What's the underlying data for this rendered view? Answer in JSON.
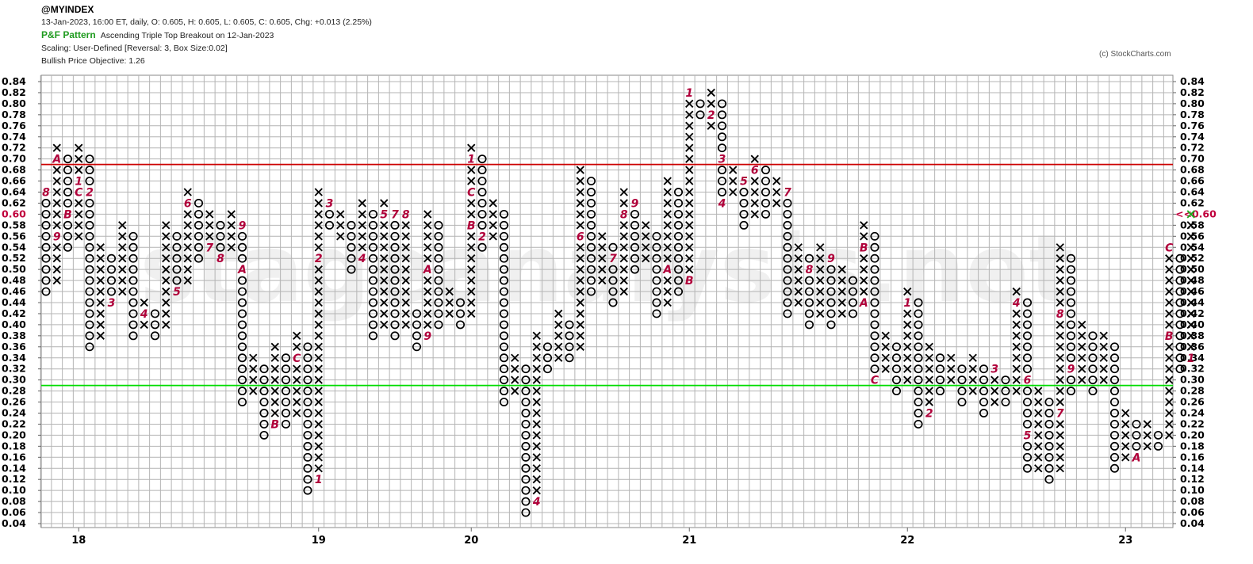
{
  "header": {
    "symbol": "@MYINDEX",
    "summary": "13-Jan-2023, 16:00 ET, daily, O: 0.605, H: 0.605, L: 0.605, C: 0.605, Chg: +0.013 (2.25%)",
    "pattern_label": "P&F Pattern",
    "pattern_text": "Ascending Triple Top Breakout on 12-Jan-2023",
    "scaling": "Scaling: User-Defined [Reversal: 3, Box Size:0.02]",
    "objective": "Bullish Price Objective: 1.26"
  },
  "copyright": "(c) StockCharts.com",
  "watermark": "stageanalysis.net",
  "chart_data": {
    "type": "point-and-figure",
    "box_size": 0.02,
    "reversal": 3,
    "y_ticks": [
      "0.84",
      "0.82",
      "0.80",
      "0.78",
      "0.76",
      "0.74",
      "0.72",
      "0.70",
      "0.68",
      "0.66",
      "0.64",
      "0.62",
      "0.60",
      "0.58",
      "0.56",
      "0.54",
      "0.52",
      "0.50",
      "0.48",
      "0.46",
      "0.44",
      "0.42",
      "0.40",
      "0.38",
      "0.36",
      "0.34",
      "0.32",
      "0.30",
      "0.28",
      "0.26",
      "0.24",
      "0.22",
      "0.20",
      "0.18",
      "0.16",
      "0.14",
      "0.12",
      "0.10",
      "0.08",
      "0.06",
      "0.04"
    ],
    "ylim": [
      0.04,
      0.84
    ],
    "current_price_label": "0.60",
    "current_price_marker": "<<0.60",
    "x_ticks": [
      {
        "label": "18",
        "col": 3
      },
      {
        "label": "19",
        "col": 25
      },
      {
        "label": "20",
        "col": 39
      },
      {
        "label": "21",
        "col": 59
      },
      {
        "label": "22",
        "col": 79
      },
      {
        "label": "23",
        "col": 99
      }
    ],
    "resistance_line": {
      "value": 0.69,
      "color": "#cc0000"
    },
    "support_line": {
      "value": 0.29,
      "color": "#00dd00"
    },
    "columns": [
      {
        "col": 0,
        "dir": "O",
        "top": 0.64,
        "bottom": 0.46,
        "marks": {
          "0.64": "8"
        }
      },
      {
        "col": 1,
        "dir": "X",
        "top": 0.72,
        "bottom": 0.48,
        "marks": {
          "0.70": "A",
          "0.56": "9"
        }
      },
      {
        "col": 2,
        "dir": "O",
        "top": 0.7,
        "bottom": 0.54,
        "marks": {
          "0.60": "B"
        }
      },
      {
        "col": 3,
        "dir": "X",
        "top": 0.72,
        "bottom": 0.56,
        "marks": {
          "0.66": "1",
          "0.64": "C"
        }
      },
      {
        "col": 4,
        "dir": "O",
        "top": 0.7,
        "bottom": 0.36,
        "marks": {
          "0.64": "2"
        }
      },
      {
        "col": 5,
        "dir": "X",
        "top": 0.54,
        "bottom": 0.38
      },
      {
        "col": 6,
        "dir": "O",
        "top": 0.52,
        "bottom": 0.44,
        "marks": {
          "0.44": "3"
        }
      },
      {
        "col": 7,
        "dir": "X",
        "top": 0.58,
        "bottom": 0.46
      },
      {
        "col": 8,
        "dir": "O",
        "top": 0.56,
        "bottom": 0.38
      },
      {
        "col": 9,
        "dir": "X",
        "top": 0.44,
        "bottom": 0.4,
        "marks": {
          "0.42": "4"
        }
      },
      {
        "col": 10,
        "dir": "O",
        "top": 0.42,
        "bottom": 0.38
      },
      {
        "col": 11,
        "dir": "X",
        "top": 0.58,
        "bottom": 0.4
      },
      {
        "col": 12,
        "dir": "O",
        "top": 0.56,
        "bottom": 0.46,
        "marks": {
          "0.46": "5"
        }
      },
      {
        "col": 13,
        "dir": "X",
        "top": 0.64,
        "bottom": 0.48,
        "marks": {
          "0.62": "6"
        }
      },
      {
        "col": 14,
        "dir": "O",
        "top": 0.62,
        "bottom": 0.52
      },
      {
        "col": 15,
        "dir": "X",
        "top": 0.6,
        "bottom": 0.54,
        "marks": {
          "0.54": "7"
        }
      },
      {
        "col": 16,
        "dir": "O",
        "top": 0.58,
        "bottom": 0.52,
        "marks": {
          "0.52": "8"
        }
      },
      {
        "col": 17,
        "dir": "X",
        "top": 0.6,
        "bottom": 0.54
      },
      {
        "col": 18,
        "dir": "O",
        "top": 0.58,
        "bottom": 0.26,
        "marks": {
          "0.58": "9",
          "0.50": "A"
        }
      },
      {
        "col": 19,
        "dir": "X",
        "top": 0.34,
        "bottom": 0.28
      },
      {
        "col": 20,
        "dir": "O",
        "top": 0.32,
        "bottom": 0.2
      },
      {
        "col": 21,
        "dir": "X",
        "top": 0.36,
        "bottom": 0.22,
        "marks": {
          "0.22": "B"
        }
      },
      {
        "col": 22,
        "dir": "O",
        "top": 0.34,
        "bottom": 0.22
      },
      {
        "col": 23,
        "dir": "X",
        "top": 0.38,
        "bottom": 0.24,
        "marks": {
          "0.34": "C"
        }
      },
      {
        "col": 24,
        "dir": "O",
        "top": 0.36,
        "bottom": 0.1
      },
      {
        "col": 25,
        "dir": "X",
        "top": 0.64,
        "bottom": 0.12,
        "marks": {
          "0.52": "2",
          "0.12": "1"
        }
      },
      {
        "col": 26,
        "dir": "O",
        "top": 0.62,
        "bottom": 0.58,
        "marks": {
          "0.62": "3"
        }
      },
      {
        "col": 27,
        "dir": "X",
        "top": 0.6,
        "bottom": 0.56
      },
      {
        "col": 28,
        "dir": "O",
        "top": 0.58,
        "bottom": 0.5
      },
      {
        "col": 29,
        "dir": "X",
        "top": 0.62,
        "bottom": 0.52,
        "marks": {
          "0.52": "4"
        }
      },
      {
        "col": 30,
        "dir": "O",
        "top": 0.6,
        "bottom": 0.38
      },
      {
        "col": 31,
        "dir": "X",
        "top": 0.62,
        "bottom": 0.4,
        "marks": {
          "0.60": "5",
          "0.38": "6"
        }
      },
      {
        "col": 32,
        "dir": "O",
        "top": 0.6,
        "bottom": 0.38,
        "marks": {
          "0.60": "7"
        }
      },
      {
        "col": 33,
        "dir": "X",
        "top": 0.6,
        "bottom": 0.4,
        "marks": {
          "0.60": "8"
        }
      },
      {
        "col": 34,
        "dir": "O",
        "top": 0.42,
        "bottom": 0.36
      },
      {
        "col": 35,
        "dir": "X",
        "top": 0.6,
        "bottom": 0.38,
        "marks": {
          "0.50": "A",
          "0.38": "9"
        }
      },
      {
        "col": 36,
        "dir": "O",
        "top": 0.58,
        "bottom": 0.4
      },
      {
        "col": 37,
        "dir": "X",
        "top": 0.46,
        "bottom": 0.42
      },
      {
        "col": 38,
        "dir": "O",
        "top": 0.44,
        "bottom": 0.4
      },
      {
        "col": 39,
        "dir": "X",
        "top": 0.72,
        "bottom": 0.42,
        "marks": {
          "0.70": "1",
          "0.64": "C",
          "0.58": "B"
        }
      },
      {
        "col": 40,
        "dir": "O",
        "top": 0.7,
        "bottom": 0.54,
        "marks": {
          "0.56": "2"
        }
      },
      {
        "col": 41,
        "dir": "X",
        "top": 0.62,
        "bottom": 0.56
      },
      {
        "col": 42,
        "dir": "O",
        "top": 0.6,
        "bottom": 0.26
      },
      {
        "col": 43,
        "dir": "X",
        "top": 0.34,
        "bottom": 0.28,
        "marks": {
          "0.26": "3"
        }
      },
      {
        "col": 44,
        "dir": "O",
        "top": 0.32,
        "bottom": 0.06
      },
      {
        "col": 45,
        "dir": "X",
        "top": 0.38,
        "bottom": 0.08,
        "marks": {
          "0.08": "4"
        }
      },
      {
        "col": 46,
        "dir": "O",
        "top": 0.36,
        "bottom": 0.32,
        "marks": {
          "0.38": "5"
        }
      },
      {
        "col": 47,
        "dir": "X",
        "top": 0.42,
        "bottom": 0.34
      },
      {
        "col": 48,
        "dir": "O",
        "top": 0.4,
        "bottom": 0.34
      },
      {
        "col": 49,
        "dir": "X",
        "top": 0.68,
        "bottom": 0.36,
        "marks": {
          "0.56": "6"
        }
      },
      {
        "col": 50,
        "dir": "O",
        "top": 0.66,
        "bottom": 0.46
      },
      {
        "col": 51,
        "dir": "X",
        "top": 0.56,
        "bottom": 0.48
      },
      {
        "col": 52,
        "dir": "O",
        "top": 0.54,
        "bottom": 0.44,
        "marks": {
          "0.52": "7"
        }
      },
      {
        "col": 53,
        "dir": "X",
        "top": 0.64,
        "bottom": 0.46,
        "marks": {
          "0.60": "8"
        }
      },
      {
        "col": 54,
        "dir": "O",
        "top": 0.62,
        "bottom": 0.5,
        "marks": {
          "0.62": "9"
        }
      },
      {
        "col": 55,
        "dir": "X",
        "top": 0.58,
        "bottom": 0.52
      },
      {
        "col": 56,
        "dir": "O",
        "top": 0.56,
        "bottom": 0.42
      },
      {
        "col": 57,
        "dir": "X",
        "top": 0.66,
        "bottom": 0.44,
        "marks": {
          "0.50": "A"
        }
      },
      {
        "col": 58,
        "dir": "O",
        "top": 0.64,
        "bottom": 0.46
      },
      {
        "col": 59,
        "dir": "X",
        "top": 0.82,
        "bottom": 0.48,
        "marks": {
          "0.82": "1",
          "0.48": "B"
        }
      },
      {
        "col": 60,
        "dir": "O",
        "top": 0.8,
        "bottom": 0.78
      },
      {
        "col": 61,
        "dir": "X",
        "top": 0.82,
        "bottom": 0.76,
        "marks": {
          "0.78": "2"
        }
      },
      {
        "col": 62,
        "dir": "O",
        "top": 0.8,
        "bottom": 0.62,
        "marks": {
          "0.70": "3",
          "0.62": "4"
        }
      },
      {
        "col": 63,
        "dir": "X",
        "top": 0.68,
        "bottom": 0.64
      },
      {
        "col": 64,
        "dir": "O",
        "top": 0.66,
        "bottom": 0.58,
        "marks": {
          "0.66": "5"
        }
      },
      {
        "col": 65,
        "dir": "X",
        "top": 0.7,
        "bottom": 0.6,
        "marks": {
          "0.68": "6"
        }
      },
      {
        "col": 66,
        "dir": "O",
        "top": 0.68,
        "bottom": 0.6
      },
      {
        "col": 67,
        "dir": "X",
        "top": 0.66,
        "bottom": 0.62
      },
      {
        "col": 68,
        "dir": "O",
        "top": 0.64,
        "bottom": 0.42,
        "marks": {
          "0.64": "7"
        }
      },
      {
        "col": 69,
        "dir": "X",
        "top": 0.54,
        "bottom": 0.44
      },
      {
        "col": 70,
        "dir": "O",
        "top": 0.52,
        "bottom": 0.4,
        "marks": {
          "0.50": "8"
        }
      },
      {
        "col": 71,
        "dir": "X",
        "top": 0.54,
        "bottom": 0.42
      },
      {
        "col": 72,
        "dir": "O",
        "top": 0.52,
        "bottom": 0.4,
        "marks": {
          "0.52": "9"
        }
      },
      {
        "col": 73,
        "dir": "X",
        "top": 0.5,
        "bottom": 0.42
      },
      {
        "col": 74,
        "dir": "O",
        "top": 0.48,
        "bottom": 0.42
      },
      {
        "col": 75,
        "dir": "X",
        "top": 0.58,
        "bottom": 0.44,
        "marks": {
          "0.54": "B",
          "0.44": "A"
        }
      },
      {
        "col": 76,
        "dir": "O",
        "top": 0.56,
        "bottom": 0.3,
        "marks": {
          "0.30": "C"
        }
      },
      {
        "col": 77,
        "dir": "X",
        "top": 0.38,
        "bottom": 0.32
      },
      {
        "col": 78,
        "dir": "O",
        "top": 0.36,
        "bottom": 0.28
      },
      {
        "col": 79,
        "dir": "X",
        "top": 0.46,
        "bottom": 0.3,
        "marks": {
          "0.44": "1"
        }
      },
      {
        "col": 80,
        "dir": "O",
        "top": 0.44,
        "bottom": 0.22
      },
      {
        "col": 81,
        "dir": "X",
        "top": 0.36,
        "bottom": 0.24,
        "marks": {
          "0.24": "2"
        }
      },
      {
        "col": 82,
        "dir": "O",
        "top": 0.34,
        "bottom": 0.28
      },
      {
        "col": 83,
        "dir": "X",
        "top": 0.34,
        "bottom": 0.3
      },
      {
        "col": 84,
        "dir": "O",
        "top": 0.32,
        "bottom": 0.26
      },
      {
        "col": 85,
        "dir": "X",
        "top": 0.34,
        "bottom": 0.28
      },
      {
        "col": 86,
        "dir": "O",
        "top": 0.32,
        "bottom": 0.24
      },
      {
        "col": 87,
        "dir": "X",
        "top": 0.32,
        "bottom": 0.26,
        "marks": {
          "0.32": "3"
        }
      },
      {
        "col": 88,
        "dir": "O",
        "top": 0.3,
        "bottom": 0.26
      },
      {
        "col": 89,
        "dir": "X",
        "top": 0.46,
        "bottom": 0.28,
        "marks": {
          "0.44": "4"
        }
      },
      {
        "col": 90,
        "dir": "O",
        "top": 0.44,
        "bottom": 0.14,
        "marks": {
          "0.30": "6",
          "0.20": "5"
        }
      },
      {
        "col": 91,
        "dir": "X",
        "top": 0.28,
        "bottom": 0.14
      },
      {
        "col": 92,
        "dir": "O",
        "top": 0.26,
        "bottom": 0.12
      },
      {
        "col": 93,
        "dir": "X",
        "top": 0.54,
        "bottom": 0.14,
        "marks": {
          "0.42": "8",
          "0.24": "7"
        }
      },
      {
        "col": 94,
        "dir": "O",
        "top": 0.52,
        "bottom": 0.28,
        "marks": {
          "0.32": "9"
        }
      },
      {
        "col": 95,
        "dir": "X",
        "top": 0.4,
        "bottom": 0.3
      },
      {
        "col": 96,
        "dir": "O",
        "top": 0.38,
        "bottom": 0.28
      },
      {
        "col": 97,
        "dir": "X",
        "top": 0.38,
        "bottom": 0.3
      },
      {
        "col": 98,
        "dir": "O",
        "top": 0.36,
        "bottom": 0.14
      },
      {
        "col": 99,
        "dir": "X",
        "top": 0.24,
        "bottom": 0.16
      },
      {
        "col": 100,
        "dir": "O",
        "top": 0.22,
        "bottom": 0.16,
        "marks": {
          "0.16": "A"
        }
      },
      {
        "col": 101,
        "dir": "X",
        "top": 0.22,
        "bottom": 0.18
      },
      {
        "col": 102,
        "dir": "O",
        "top": 0.2,
        "bottom": 0.18
      },
      {
        "col": 103,
        "dir": "X",
        "top": 0.54,
        "bottom": 0.2,
        "marks": {
          "0.54": "C",
          "0.38": "B"
        }
      },
      {
        "col": 104,
        "dir": "O",
        "top": 0.52,
        "bottom": 0.32
      },
      {
        "col": 105,
        "dir": "X",
        "top": 0.6,
        "bottom": 0.34,
        "marks": {
          "0.34": "1"
        }
      }
    ]
  }
}
